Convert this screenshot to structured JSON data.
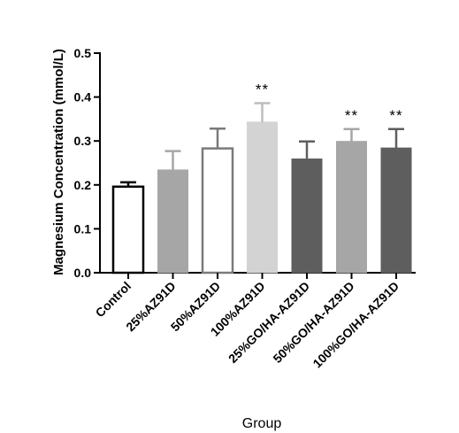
{
  "chart_data": {
    "type": "bar",
    "title": "",
    "xlabel": "Group",
    "ylabel": "Magnesium Concentration (mmol/L)",
    "ylim": [
      0,
      0.5
    ],
    "yticks": [
      "0.0",
      "0.1",
      "0.2",
      "0.3",
      "0.4",
      "0.5"
    ],
    "ytick_values": [
      0,
      0.1,
      0.2,
      0.3,
      0.4,
      0.5
    ],
    "categories": [
      "Control",
      "25%AZ91D",
      "50%AZ91D",
      "100%AZ91D",
      "25%GO/HA-AZ91D",
      "50%GO/HA-AZ91D",
      "100%GO/HA-AZ91D"
    ],
    "values": [
      0.196,
      0.234,
      0.283,
      0.343,
      0.259,
      0.299,
      0.284
    ],
    "errors": [
      0.01,
      0.043,
      0.045,
      0.043,
      0.04,
      0.028,
      0.043
    ],
    "annotations": [
      "",
      "",
      "",
      "**",
      "",
      "**",
      "**"
    ],
    "bar_colors": [
      "#ffffff",
      "#a6a6a6",
      "#ffffff",
      "#d3d3d3",
      "#5e5e5e",
      "#a6a6a6",
      "#5e5e5e"
    ],
    "bar_edge_colors": [
      "#000000",
      "#a6a6a6",
      "#7a7a7a",
      "#d3d3d3",
      "#5e5e5e",
      "#a6a6a6",
      "#5e5e5e"
    ],
    "error_colors": [
      "#000000",
      "#a6a6a6",
      "#7a7a7a",
      "#bdbdbd",
      "#5e5e5e",
      "#a6a6a6",
      "#5e5e5e"
    ],
    "grid": false,
    "legend": "none"
  }
}
